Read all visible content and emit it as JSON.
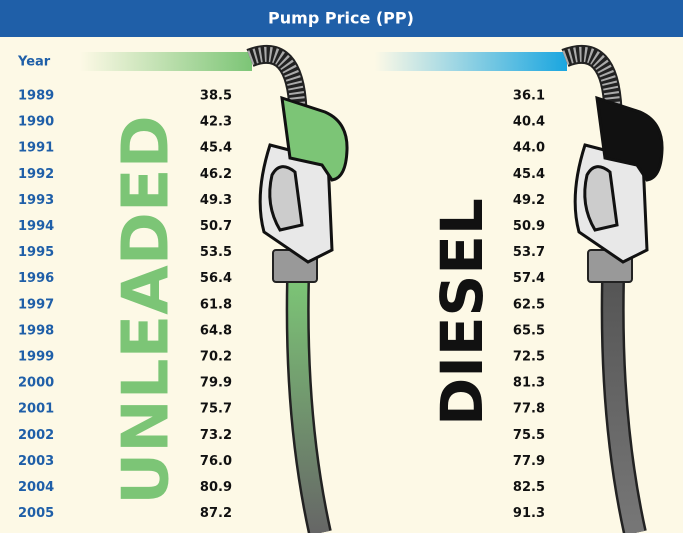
{
  "header": {
    "title": "Pump Price (PP)",
    "column": "Year"
  },
  "labels": {
    "unleaded": "UNLEADED",
    "diesel": "DIESEL"
  },
  "table": {
    "rows": [
      [
        "1989",
        "38.5",
        "36.1"
      ],
      [
        "1990",
        "42.3",
        "40.4"
      ],
      [
        "1991",
        "45.4",
        "44.0"
      ],
      [
        "1992",
        "46.2",
        "45.4"
      ],
      [
        "1993",
        "49.3",
        "49.2"
      ],
      [
        "1994",
        "50.7",
        "50.9"
      ],
      [
        "1995",
        "53.5",
        "53.7"
      ],
      [
        "1996",
        "56.4",
        "57.4"
      ],
      [
        "1997",
        "61.8",
        "62.5"
      ],
      [
        "1998",
        "64.8",
        "65.5"
      ],
      [
        "1999",
        "70.2",
        "72.5"
      ],
      [
        "2000",
        "79.9",
        "81.3"
      ],
      [
        "2001",
        "75.7",
        "77.8"
      ],
      [
        "2002",
        "73.2",
        "75.5"
      ],
      [
        "2003",
        "76.0",
        "77.9"
      ],
      [
        "2004",
        "80.9",
        "82.5"
      ],
      [
        "2005",
        "87.2",
        "91.3"
      ]
    ]
  }
}
